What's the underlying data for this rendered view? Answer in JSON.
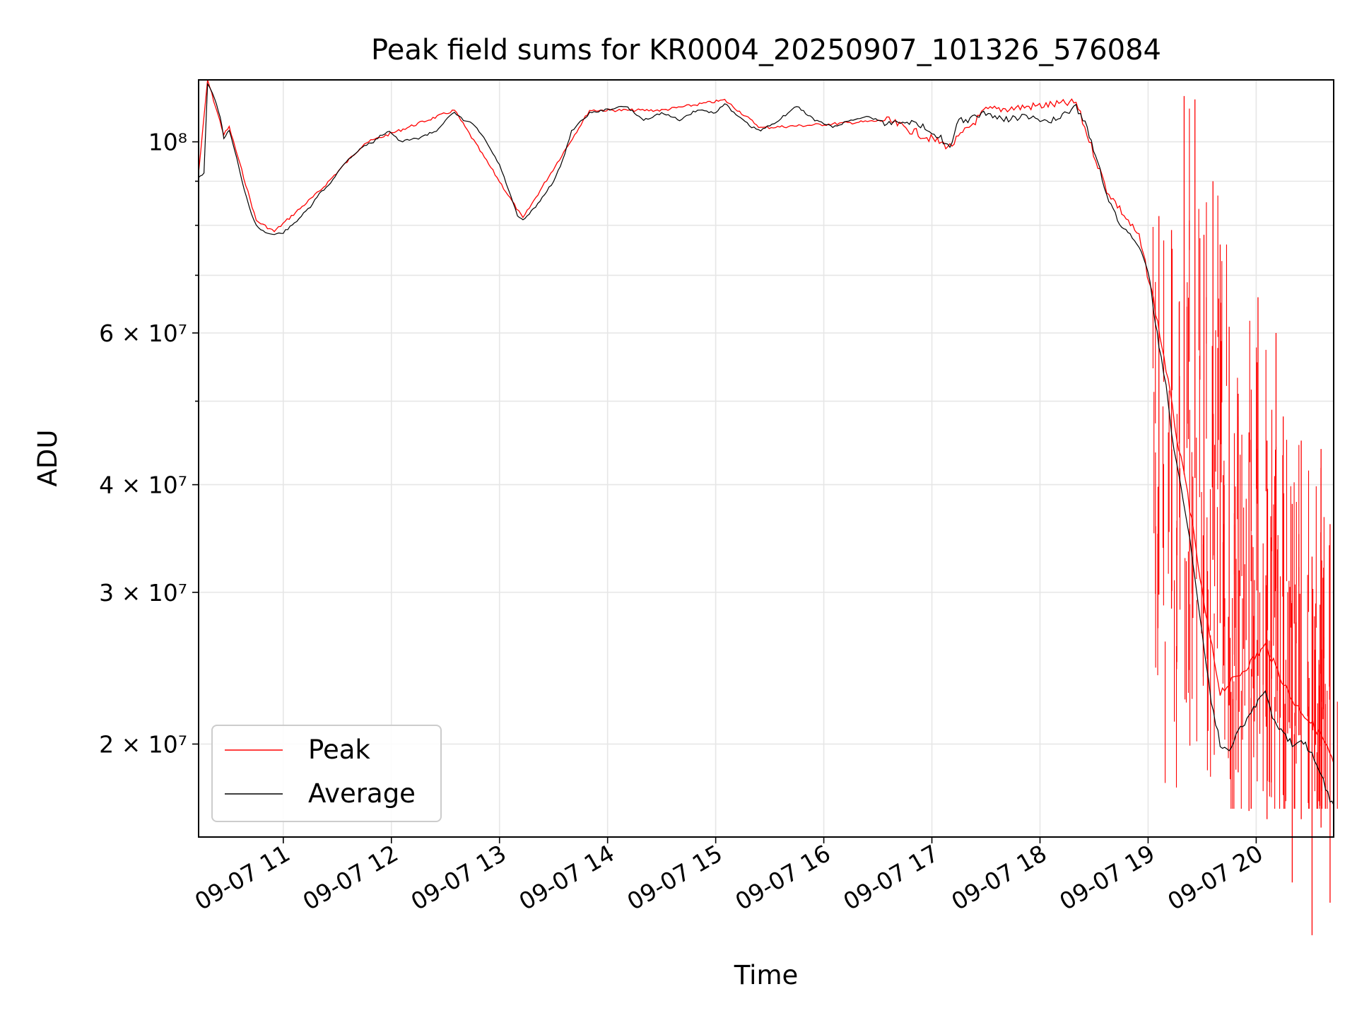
{
  "chart_data": {
    "type": "line",
    "title": "Peak field sums for KR0004_20250907_101326_576084",
    "xlabel": "Time",
    "ylabel": "ADU",
    "yscale": "log",
    "ylim": [
      15600000,
      118000000
    ],
    "xlim": [
      "2025-09-07 10:13",
      "2025-09-07 20:43"
    ],
    "x_ticks": [
      "09-07 11",
      "09-07 12",
      "09-07 13",
      "09-07 14",
      "09-07 15",
      "09-07 16",
      "09-07 17",
      "09-07 18",
      "09-07 19",
      "09-07 20"
    ],
    "y_ticks": [
      {
        "value": 20000000,
        "label": "2 × 10⁷"
      },
      {
        "value": 30000000,
        "label": "3 × 10⁷"
      },
      {
        "value": 40000000,
        "label": "4 × 10⁷"
      },
      {
        "value": 60000000,
        "label": "6 × 10⁷"
      },
      {
        "value": 100000000,
        "label": "10⁸"
      }
    ],
    "y_minor_ticks": [
      50000000,
      70000000,
      80000000,
      90000000
    ],
    "grid": true,
    "legend_position": "lower-left",
    "series": [
      {
        "name": "Average",
        "color": "#000000",
        "points": [
          [
            "2025-09-07 10:13",
            91000000
          ],
          [
            "2025-09-07 10:16",
            92000000
          ],
          [
            "2025-09-07 10:18",
            117000000
          ],
          [
            "2025-09-07 10:22",
            112000000
          ],
          [
            "2025-09-07 10:25",
            107000000
          ],
          [
            "2025-09-07 10:27",
            101000000
          ],
          [
            "2025-09-07 10:30",
            103000000
          ],
          [
            "2025-09-07 10:33",
            98000000
          ],
          [
            "2025-09-07 10:37",
            90000000
          ],
          [
            "2025-09-07 10:41",
            84000000
          ],
          [
            "2025-09-07 10:45",
            80000000
          ],
          [
            "2025-09-07 10:50",
            78500000
          ],
          [
            "2025-09-07 10:55",
            78000000
          ],
          [
            "2025-09-07 11:00",
            78500000
          ],
          [
            "2025-09-07 11:05",
            80000000
          ],
          [
            "2025-09-07 11:10",
            82000000
          ],
          [
            "2025-09-07 11:15",
            84000000
          ],
          [
            "2025-09-07 11:20",
            87000000
          ],
          [
            "2025-09-07 11:25",
            89000000
          ],
          [
            "2025-09-07 11:30",
            92000000
          ],
          [
            "2025-09-07 11:35",
            95000000
          ],
          [
            "2025-09-07 11:40",
            97000000
          ],
          [
            "2025-09-07 11:45",
            99000000
          ],
          [
            "2025-09-07 11:50",
            100000000
          ],
          [
            "2025-09-07 11:55",
            102000000
          ],
          [
            "2025-09-07 11:59",
            103000000
          ],
          [
            "2025-09-07 12:05",
            100000000
          ],
          [
            "2025-09-07 12:15",
            101000000
          ],
          [
            "2025-09-07 12:25",
            103000000
          ],
          [
            "2025-09-07 12:30",
            106000000
          ],
          [
            "2025-09-07 12:35",
            108000000
          ],
          [
            "2025-09-07 12:40",
            106000000
          ],
          [
            "2025-09-07 12:45",
            105000000
          ],
          [
            "2025-09-07 12:50",
            102000000
          ],
          [
            "2025-09-07 12:55",
            98000000
          ],
          [
            "2025-09-07 13:00",
            94000000
          ],
          [
            "2025-09-07 13:05",
            88000000
          ],
          [
            "2025-09-07 13:10",
            82000000
          ],
          [
            "2025-09-07 13:13",
            81000000
          ],
          [
            "2025-09-07 13:20",
            84000000
          ],
          [
            "2025-09-07 13:30",
            90000000
          ],
          [
            "2025-09-07 13:35",
            95000000
          ],
          [
            "2025-09-07 13:40",
            103000000
          ],
          [
            "2025-09-07 13:50",
            108000000
          ],
          [
            "2025-09-07 14:00",
            109000000
          ],
          [
            "2025-09-07 14:10",
            110000000
          ],
          [
            "2025-09-07 14:20",
            106000000
          ],
          [
            "2025-09-07 14:30",
            108000000
          ],
          [
            "2025-09-07 14:40",
            106000000
          ],
          [
            "2025-09-07 14:50",
            109000000
          ],
          [
            "2025-09-07 15:00",
            108000000
          ],
          [
            "2025-09-07 15:05",
            111000000
          ],
          [
            "2025-09-07 15:10",
            108000000
          ],
          [
            "2025-09-07 15:20",
            104000000
          ],
          [
            "2025-09-07 15:25",
            103000000
          ],
          [
            "2025-09-07 15:35",
            106000000
          ],
          [
            "2025-09-07 15:45",
            110000000
          ],
          [
            "2025-09-07 15:55",
            106000000
          ],
          [
            "2025-09-07 16:05",
            104000000
          ],
          [
            "2025-09-07 16:15",
            106000000
          ],
          [
            "2025-09-07 16:25",
            107000000
          ],
          [
            "2025-09-07 16:35",
            105000000
          ],
          [
            "2025-09-07 16:45",
            106000000
          ],
          [
            "2025-09-07 16:55",
            104000000
          ],
          [
            "2025-09-07 17:00",
            103000000
          ],
          [
            "2025-09-07 17:05",
            101000000
          ],
          [
            "2025-09-07 17:10",
            98000000
          ],
          [
            "2025-09-07 17:15",
            106000000
          ],
          [
            "2025-09-07 17:20",
            106000000
          ],
          [
            "2025-09-07 17:30",
            108000000
          ],
          [
            "2025-09-07 17:40",
            106000000
          ],
          [
            "2025-09-07 17:50",
            107000000
          ],
          [
            "2025-09-07 18:00",
            106000000
          ],
          [
            "2025-09-07 18:10",
            106000000
          ],
          [
            "2025-09-07 18:20",
            110000000
          ],
          [
            "2025-09-07 18:25",
            105000000
          ],
          [
            "2025-09-07 18:32",
            95000000
          ],
          [
            "2025-09-07 18:37",
            87000000
          ],
          [
            "2025-09-07 18:43",
            81000000
          ],
          [
            "2025-09-07 18:50",
            78000000
          ],
          [
            "2025-09-07 18:55",
            76000000
          ],
          [
            "2025-09-07 19:00",
            71000000
          ],
          [
            "2025-09-07 19:03",
            64000000
          ],
          [
            "2025-09-07 19:06",
            58000000
          ],
          [
            "2025-09-07 19:10",
            52000000
          ],
          [
            "2025-09-07 19:13",
            46000000
          ],
          [
            "2025-09-07 19:17",
            41000000
          ],
          [
            "2025-09-07 19:22",
            36000000
          ],
          [
            "2025-09-07 19:26",
            31000000
          ],
          [
            "2025-09-07 19:31",
            26000000
          ],
          [
            "2025-09-07 19:35",
            22500000
          ],
          [
            "2025-09-07 19:40",
            20000000
          ],
          [
            "2025-09-07 19:45",
            19700000
          ],
          [
            "2025-09-07 19:50",
            20800000
          ],
          [
            "2025-09-07 19:56",
            21500000
          ],
          [
            "2025-09-07 20:01",
            22500000
          ],
          [
            "2025-09-07 20:05",
            23000000
          ],
          [
            "2025-09-07 20:09",
            21500000
          ],
          [
            "2025-09-07 20:15",
            20500000
          ],
          [
            "2025-09-07 20:20",
            20000000
          ],
          [
            "2025-09-07 20:25",
            20300000
          ],
          [
            "2025-09-07 20:31",
            19500000
          ],
          [
            "2025-09-07 20:36",
            18500000
          ],
          [
            "2025-09-07 20:41",
            17200000
          ],
          [
            "2025-09-07 20:43",
            17000000
          ]
        ]
      },
      {
        "name": "Peak",
        "color": "#ff0000",
        "points": [
          [
            "2025-09-07 10:13",
            92000000
          ],
          [
            "2025-09-07 10:18",
            118000000
          ],
          [
            "2025-09-07 10:27",
            102000000
          ],
          [
            "2025-09-07 10:30",
            104000000
          ],
          [
            "2025-09-07 10:45",
            81000000
          ],
          [
            "2025-09-07 10:55",
            78700000
          ],
          [
            "2025-09-07 11:20",
            87600000
          ],
          [
            "2025-09-07 11:45",
            99600000
          ],
          [
            "2025-09-07 12:35",
            108800000
          ],
          [
            "2025-09-07 13:13",
            81500000
          ],
          [
            "2025-09-07 13:50",
            108800000
          ],
          [
            "2025-09-07 14:30",
            108800000
          ],
          [
            "2025-09-07 15:05",
            111800000
          ],
          [
            "2025-09-07 15:25",
            103800000
          ],
          [
            "2025-09-07 16:05",
            104900000
          ],
          [
            "2025-09-07 16:35",
            105900000
          ],
          [
            "2025-09-07 17:10",
            98700000
          ],
          [
            "2025-09-07 17:30",
            108800000
          ],
          [
            "2025-09-07 18:20",
            111000000
          ],
          [
            "2025-09-07 18:37",
            88000000
          ],
          [
            "2025-09-07 18:55",
            77500000
          ],
          [
            "2025-09-07 19:03",
            65500000
          ],
          [
            "2025-09-07 19:10",
            54500000
          ],
          [
            "2025-09-07 19:17",
            44000000
          ],
          [
            "2025-09-07 19:22",
            39000000
          ],
          [
            "2025-09-07 19:31",
            29000000
          ],
          [
            "2025-09-07 19:40",
            23000000
          ],
          [
            "2025-09-07 19:50",
            24000000
          ],
          [
            "2025-09-07 20:05",
            26000000
          ],
          [
            "2025-09-07 20:20",
            22500000
          ],
          [
            "2025-09-07 20:36",
            20500000
          ],
          [
            "2025-09-07 20:43",
            19000000
          ]
        ],
        "spikes": [
          [
            "2025-09-07 19:06",
            82000000
          ],
          [
            "2025-09-07 19:13",
            79000000
          ],
          [
            "2025-09-07 19:20",
            113000000
          ],
          [
            "2025-09-07 19:26",
            112000000
          ],
          [
            "2025-09-07 19:31",
            78000000
          ],
          [
            "2025-09-07 19:36",
            90000000
          ],
          [
            "2025-09-07 19:40",
            76000000
          ],
          [
            "2025-09-07 19:45",
            61000000
          ],
          [
            "2025-09-07 19:50",
            51000000
          ],
          [
            "2025-09-07 19:56",
            46000000
          ],
          [
            "2025-09-07 20:01",
            66000000
          ],
          [
            "2025-09-07 20:06",
            45000000
          ],
          [
            "2025-09-07 20:11",
            60000000
          ],
          [
            "2025-09-07 20:15",
            48000000
          ],
          [
            "2025-09-07 20:20",
            38000000
          ],
          [
            "2025-09-07 20:25",
            45000000
          ],
          [
            "2025-09-07 20:31",
            33000000
          ],
          [
            "2025-09-07 20:36",
            44000000
          ],
          [
            "2025-09-07 20:41",
            36000000
          ]
        ]
      }
    ]
  }
}
